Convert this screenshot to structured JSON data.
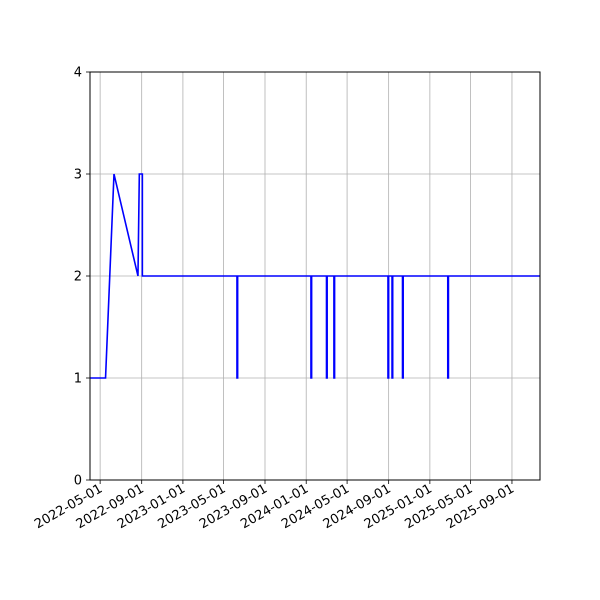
{
  "chart_data": {
    "type": "line",
    "title": "",
    "xlabel": "",
    "ylabel": "",
    "x_axis_type": "date",
    "xlim": [
      "2022-04-01",
      "2025-11-23"
    ],
    "ylim": [
      0,
      4
    ],
    "grid": true,
    "x_ticks": [
      "2022-05-01",
      "2022-09-01",
      "2023-01-01",
      "2023-05-01",
      "2023-09-01",
      "2024-01-01",
      "2024-05-01",
      "2024-09-01",
      "2025-01-01",
      "2025-05-01",
      "2025-09-01"
    ],
    "y_ticks": [
      0,
      1,
      2,
      3,
      4
    ],
    "series": [
      {
        "color": "#0000ff",
        "step": "post",
        "points": [
          [
            "2022-04-01",
            1
          ],
          [
            "2022-05-17",
            1
          ],
          [
            "2022-06-11",
            3
          ],
          [
            "2022-08-21",
            2
          ],
          [
            "2022-08-25",
            3
          ],
          [
            "2022-09-03",
            2
          ],
          [
            "2023-06-10",
            1
          ],
          [
            "2023-06-12",
            2
          ],
          [
            "2024-01-15",
            1
          ],
          [
            "2024-01-17",
            2
          ],
          [
            "2024-03-01",
            1
          ],
          [
            "2024-03-03",
            2
          ],
          [
            "2024-03-23",
            1
          ],
          [
            "2024-03-25",
            2
          ],
          [
            "2024-08-30",
            1
          ],
          [
            "2024-09-01",
            2
          ],
          [
            "2024-09-11",
            1
          ],
          [
            "2024-09-13",
            2
          ],
          [
            "2024-10-12",
            1
          ],
          [
            "2024-10-14",
            2
          ],
          [
            "2025-02-23",
            1
          ],
          [
            "2025-02-25",
            2
          ],
          [
            "2025-11-23",
            2
          ]
        ],
        "linear_segments": [
          [
            1,
            2
          ],
          [
            2,
            3
          ],
          [
            3,
            4
          ]
        ]
      }
    ]
  }
}
